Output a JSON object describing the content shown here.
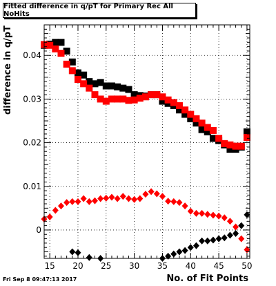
{
  "title": "Fitted difference in q/pT for Primary Rec All NoHits",
  "date_stamp": "Fri Sep  8 09:47:13 2017",
  "chart_data": {
    "type": "scatter",
    "title": "Fitted difference in q/pT for Primary Rec All NoHits",
    "xlabel": "No. of Fit Points",
    "ylabel": "difference in q/pT",
    "xlim": [
      14,
      50.5
    ],
    "ylim": [
      -0.0065,
      0.047
    ],
    "grid": true,
    "x_ticks": [
      15,
      20,
      25,
      30,
      35,
      40,
      45,
      50
    ],
    "x_tick_labels": [
      "15",
      "20",
      "25",
      "30",
      "35",
      "40",
      "45",
      "50"
    ],
    "y_ticks": [
      0,
      0.01,
      0.02,
      0.03,
      0.04
    ],
    "y_tick_labels": [
      "0",
      "0.01",
      "0.02",
      "0.03",
      "0.04"
    ],
    "colors": {
      "black": "#000000",
      "red": "#ff0000"
    },
    "series": [
      {
        "marker": "square",
        "color": "#000000",
        "x": [
          14,
          15,
          16,
          17,
          18,
          19,
          20,
          21,
          22,
          23,
          24,
          25,
          26,
          27,
          28,
          29,
          30,
          31,
          32,
          33,
          34,
          35,
          36,
          37,
          38,
          39,
          40,
          41,
          42,
          43,
          44,
          45,
          46,
          47,
          48,
          49,
          50
        ],
        "y": [
          0.0423,
          0.0426,
          0.043,
          0.043,
          0.041,
          0.0385,
          0.036,
          0.0355,
          0.034,
          0.0335,
          0.0338,
          0.033,
          0.033,
          0.0328,
          0.0325,
          0.0322,
          0.031,
          0.0308,
          0.0307,
          0.031,
          0.031,
          0.0295,
          0.029,
          0.0285,
          0.0275,
          0.0265,
          0.0255,
          0.0245,
          0.023,
          0.0225,
          0.021,
          0.0205,
          0.0195,
          0.0185,
          0.0185,
          0.019,
          0.0225
        ]
      },
      {
        "marker": "square",
        "color": "#ff0000",
        "x": [
          14,
          15,
          16,
          17,
          18,
          19,
          20,
          21,
          22,
          23,
          24,
          25,
          26,
          27,
          28,
          29,
          30,
          31,
          32,
          33,
          34,
          35,
          36,
          37,
          38,
          39,
          40,
          41,
          42,
          43,
          44,
          45,
          46,
          47,
          48,
          49,
          50
        ],
        "y": [
          0.0425,
          0.0423,
          0.0415,
          0.0405,
          0.038,
          0.0365,
          0.0345,
          0.0335,
          0.0325,
          0.031,
          0.03,
          0.0295,
          0.03,
          0.03,
          0.03,
          0.0297,
          0.0298,
          0.0302,
          0.0305,
          0.031,
          0.031,
          0.0305,
          0.0298,
          0.0292,
          0.0285,
          0.0275,
          0.0265,
          0.0255,
          0.0245,
          0.0235,
          0.0228,
          0.021,
          0.0198,
          0.0195,
          0.0192,
          0.0192,
          0.0212
        ]
      },
      {
        "marker": "diamond",
        "color": "#ff0000",
        "x": [
          14,
          15,
          16,
          17,
          18,
          19,
          20,
          21,
          22,
          23,
          24,
          25,
          26,
          27,
          28,
          29,
          30,
          31,
          32,
          33,
          34,
          35,
          36,
          37,
          38,
          39,
          40,
          41,
          42,
          43,
          44,
          45,
          46,
          47,
          48,
          49,
          50
        ],
        "y": [
          0.0025,
          0.003,
          0.0045,
          0.0055,
          0.0063,
          0.0065,
          0.0065,
          0.0072,
          0.0065,
          0.0067,
          0.0072,
          0.0073,
          0.0075,
          0.0072,
          0.0077,
          0.0072,
          0.007,
          0.0072,
          0.0082,
          0.0088,
          0.0083,
          0.0077,
          0.0066,
          0.0065,
          0.0063,
          0.0055,
          0.0043,
          0.0038,
          0.0038,
          0.0036,
          0.0034,
          0.0032,
          0.0028,
          0.002,
          0.0007,
          -0.002,
          -0.0045
        ]
      },
      {
        "marker": "diamond",
        "color": "#000000",
        "x": [
          19,
          20,
          22,
          24,
          35,
          36,
          37,
          38,
          39,
          40,
          41,
          42,
          43,
          44,
          45,
          46,
          47,
          48,
          49,
          50
        ],
        "y": [
          -0.005,
          -0.0052,
          -0.0063,
          -0.0065,
          -0.0065,
          -0.006,
          -0.0055,
          -0.005,
          -0.0047,
          -0.004,
          -0.0036,
          -0.0025,
          -0.0025,
          -0.0023,
          -0.002,
          -0.0018,
          -0.0012,
          -0.0008,
          0.001,
          0.0035
        ]
      }
    ]
  }
}
